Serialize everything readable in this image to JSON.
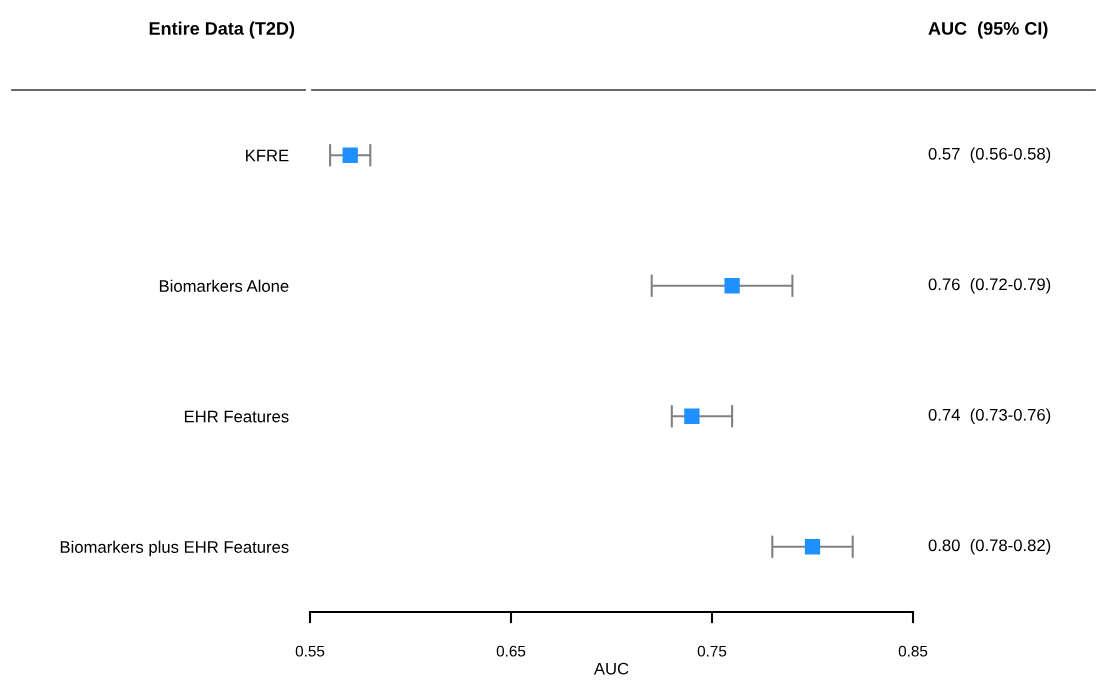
{
  "chart_data": {
    "type": "scatter",
    "orientation": "horizontal",
    "categories": [
      "KFRE",
      "Biomarkers Alone",
      "EHR Features",
      "Biomarkers plus EHR Features"
    ],
    "values": [
      0.57,
      0.76,
      0.74,
      0.8
    ],
    "errors": [
      [
        0.56,
        0.58
      ],
      [
        0.72,
        0.79
      ],
      [
        0.73,
        0.76
      ],
      [
        0.78,
        0.82
      ]
    ],
    "color": "#1e90ff",
    "marker": "square",
    "grid": false,
    "value_labels": [
      "0.57  (0.56-0.58)",
      "0.76  (0.72-0.79)",
      "0.74  (0.73-0.76)",
      "0.80  (0.78-0.82)"
    ],
    "xlabel": "AUC",
    "xlim": [
      0.55,
      0.85
    ],
    "xticks": [
      0.55,
      0.65,
      0.75,
      0.85
    ],
    "annotations": [
      "Entire Data (T2D)",
      "AUC  (95% CI)"
    ]
  }
}
